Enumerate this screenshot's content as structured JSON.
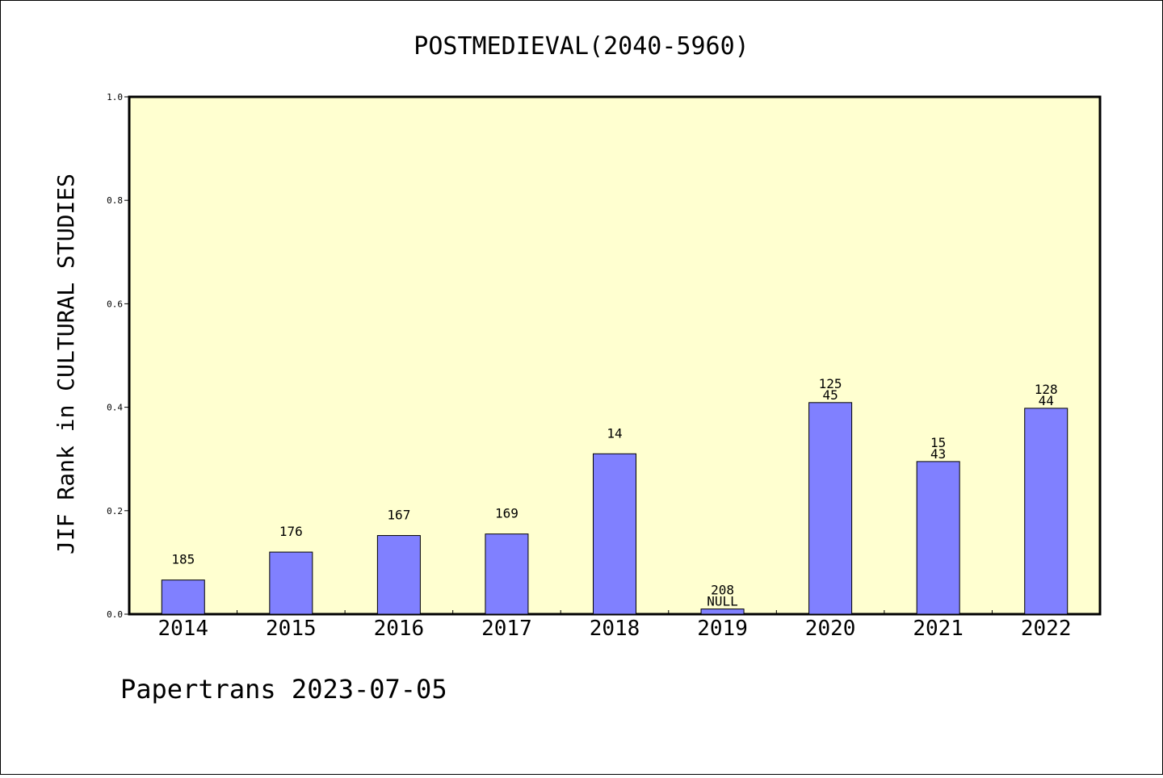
{
  "chart_data": {
    "type": "bar",
    "title": "POSTMEDIEVAL(2040-5960)",
    "xlabel": "",
    "ylabel": "JIF Rank in CULTURAL STUDIES",
    "ylim": [
      0.0,
      1.0
    ],
    "yticks": [
      "0.0",
      "0.2",
      "0.4",
      "0.6",
      "0.8",
      "1.0"
    ],
    "categories": [
      "2014",
      "2015",
      "2016",
      "2017",
      "2018",
      "2019",
      "2020",
      "2021",
      "2022"
    ],
    "values": [
      0.066,
      0.12,
      0.152,
      0.155,
      0.31,
      0.01,
      0.409,
      0.295,
      0.398
    ],
    "annotations": [
      [
        "185"
      ],
      [
        "176"
      ],
      [
        "167"
      ],
      [
        "169"
      ],
      [
        "14"
      ],
      [
        "208",
        "NULL"
      ],
      [
        "125",
        "45"
      ],
      [
        "15",
        "43"
      ],
      [
        "128",
        "44"
      ]
    ],
    "grid": false,
    "colors": {
      "plot_background": "#ffffd0",
      "bar_fill": "#8080ff",
      "bar_stroke": "#000000"
    }
  },
  "footer": {
    "text": "Papertrans 2023-07-05"
  }
}
